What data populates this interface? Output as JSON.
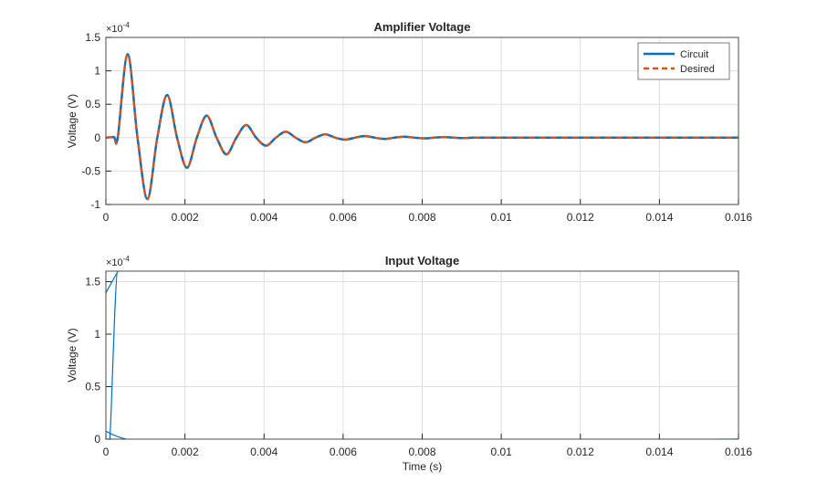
{
  "chart_data": [
    {
      "type": "line",
      "title": "Amplifier Voltage",
      "y_label": "Voltage (V)",
      "y_multiplier": "×10",
      "y_multiplier_exponent": "-4",
      "x": [
        0,
        0.0002,
        0.0003,
        0.00055,
        0.0008,
        0.00105,
        0.0013,
        0.00155,
        0.0018,
        0.00205,
        0.0023,
        0.00255,
        0.0028,
        0.00305,
        0.0033,
        0.00355,
        0.0038,
        0.00405,
        0.0043,
        0.00455,
        0.0048,
        0.00505,
        0.0053,
        0.00555,
        0.0058,
        0.00605,
        0.0063,
        0.00655,
        0.0068,
        0.00705,
        0.0073,
        0.00755,
        0.0078,
        0.00805,
        0.0083,
        0.00855,
        0.0088,
        0.00905,
        0.0093,
        0.0098,
        0.012,
        0.014,
        0.016
      ],
      "series": [
        {
          "name": "Circuit",
          "color": "#0072bd",
          "line_style": "solid",
          "values": [
            0,
            0.01,
            0,
            1.25,
            0,
            -0.92,
            0,
            0.64,
            0,
            -0.45,
            0,
            0.33,
            0,
            -0.25,
            0,
            0.19,
            0,
            -0.12,
            0,
            0.09,
            0,
            -0.07,
            0,
            0.05,
            0,
            -0.03,
            0,
            0.025,
            0,
            -0.02,
            0,
            0.015,
            0,
            -0.01,
            0,
            0.01,
            0,
            -0.007,
            0,
            0,
            0,
            0,
            0
          ]
        },
        {
          "name": "Desired",
          "color": "#d95319",
          "line_style": "dashed",
          "values": [
            0,
            0.01,
            0,
            1.25,
            0,
            -0.92,
            0,
            0.64,
            0,
            -0.45,
            0,
            0.33,
            0,
            -0.25,
            0,
            0.19,
            0,
            -0.12,
            0,
            0.09,
            0,
            -0.07,
            0,
            0.05,
            0,
            -0.03,
            0,
            0.025,
            0,
            -0.02,
            0,
            0.015,
            0,
            -0.01,
            0,
            0.01,
            0,
            -0.007,
            0,
            0,
            0,
            0,
            0
          ]
        }
      ],
      "xlim": [
        0,
        0.016
      ],
      "ylim": [
        -1,
        1.5
      ],
      "xticks": [
        0,
        0.002,
        0.004,
        0.006,
        0.008,
        0.01,
        0.012,
        0.014,
        0.016
      ],
      "yticks": [
        -1,
        -0.5,
        0,
        0.5,
        1,
        1.5
      ],
      "grid": true,
      "legend": "upper-right"
    },
    {
      "type": "line",
      "title": "Input Voltage",
      "y_label": "Voltage (V)",
      "x_label": "Time (s)",
      "y_multiplier": "×10",
      "y_multiplier_exponent": "-4",
      "x": [
        0,
        0.0001,
        0.0003,
        0.0005,
        0.016
      ],
      "series": [
        {
          "color": "#0072bd",
          "line_style": "solid",
          "values": [
            0,
            0,
            1.6,
            0,
            0
          ]
        }
      ],
      "xlim": [
        0,
        0.016
      ],
      "ylim": [
        0,
        1.6
      ],
      "xticks": [
        0,
        0.002,
        0.004,
        0.006,
        0.008,
        0.01,
        0.012,
        0.014,
        0.016
      ],
      "yticks": [
        0,
        0.5,
        1,
        1.5
      ],
      "grid": true
    }
  ]
}
